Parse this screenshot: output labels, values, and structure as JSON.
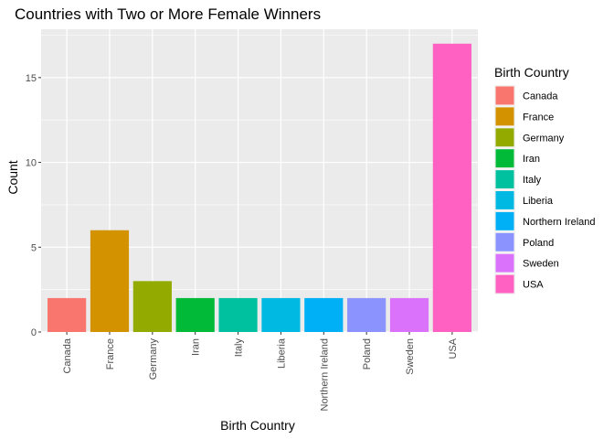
{
  "chart_data": {
    "type": "bar",
    "title": "Countries with Two or More Female Winners",
    "xlabel": "Birth Country",
    "ylabel": "Count",
    "categories": [
      "Canada",
      "France",
      "Germany",
      "Iran",
      "Italy",
      "Liberia",
      "Northern Ireland",
      "Poland",
      "Sweden",
      "USA"
    ],
    "values": [
      2,
      6,
      3,
      2,
      2,
      2,
      2,
      2,
      2,
      17
    ],
    "colors": [
      "#F8766D",
      "#D39200",
      "#93AA00",
      "#00BA38",
      "#00C19F",
      "#00B9E3",
      "#00B0F6",
      "#8B93FF",
      "#DB72FB",
      "#FF61C3"
    ],
    "ylim": [
      0,
      17.85
    ],
    "yticks": [
      0,
      5,
      10,
      15
    ],
    "legend": {
      "title": "Birth Country",
      "position": "right"
    },
    "grid": true
  }
}
